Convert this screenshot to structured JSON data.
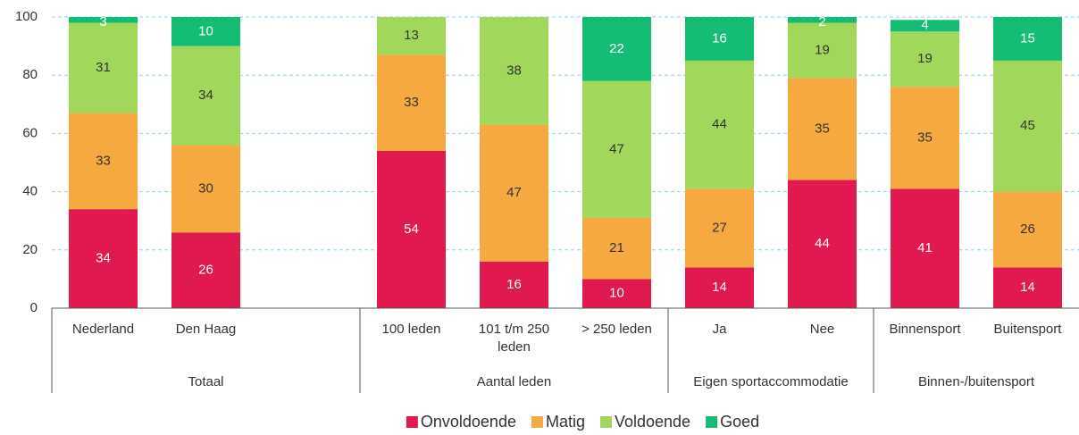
{
  "chart_data": {
    "type": "stacked_bar",
    "categories": [
      "Nederland",
      "Den Haag",
      null,
      "100 leden",
      "101 t/m 250 leden",
      "> 250 leden",
      "Ja",
      "Nee",
      "Binnensport",
      "Buitensport"
    ],
    "groups": [
      "Totaal",
      "Totaal",
      "Totaal",
      "Aantal leden",
      "Aantal leden",
      "Aantal leden",
      "Eigen sportaccommodatie",
      "Eigen sportaccommodatie",
      "Binnen-/buitensport",
      "Binnen-/buitensport"
    ],
    "series": [
      {
        "name": "Onvoldoende",
        "color": "#e0194f",
        "values": [
          34,
          26,
          null,
          54,
          16,
          10,
          14,
          44,
          41,
          14
        ]
      },
      {
        "name": "Matig",
        "color": "#f7a941",
        "values": [
          33,
          30,
          null,
          33,
          47,
          21,
          27,
          35,
          35,
          26
        ]
      },
      {
        "name": "Voldoende",
        "color": "#a1d85b",
        "values": [
          31,
          34,
          null,
          13,
          38,
          47,
          44,
          19,
          19,
          45
        ]
      },
      {
        "name": "Goed",
        "color": "#15bd74",
        "values": [
          3,
          10,
          null,
          null,
          null,
          22,
          16,
          2,
          4,
          15
        ]
      }
    ],
    "ylim": [
      0,
      100
    ],
    "yticks": [
      0,
      20,
      40,
      60,
      80,
      100
    ],
    "grid": true,
    "legend": "bottom"
  }
}
